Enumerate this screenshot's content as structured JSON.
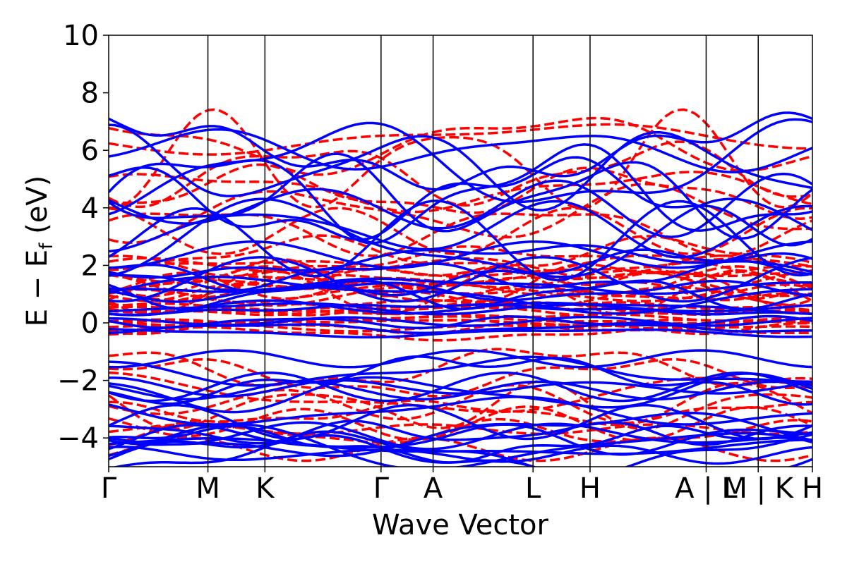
{
  "chart_data": {
    "type": "line",
    "title": "",
    "xlabel": "Wave Vector",
    "ylabel_main": "E − E",
    "ylabel_sub": "f",
    "ylabel_unit": " (eV)",
    "ylim": [
      -5,
      10
    ],
    "yticks": [
      {
        "value": -4,
        "label": "−4"
      },
      {
        "value": -2,
        "label": "−2"
      },
      {
        "value": 0,
        "label": "0"
      },
      {
        "value": 2,
        "label": "2"
      },
      {
        "value": 4,
        "label": "4"
      },
      {
        "value": 6,
        "label": "6"
      },
      {
        "value": 8,
        "label": "8"
      },
      {
        "value": 10,
        "label": "10"
      }
    ],
    "xlim": [
      0,
      1
    ],
    "kpoints": [
      {
        "pos": 0.0,
        "label": "Γ"
      },
      {
        "pos": 0.141,
        "label": "M"
      },
      {
        "pos": 0.222,
        "label": "K"
      },
      {
        "pos": 0.387,
        "label": "Γ"
      },
      {
        "pos": 0.461,
        "label": "A"
      },
      {
        "pos": 0.603,
        "label": "L"
      },
      {
        "pos": 0.684,
        "label": "H"
      },
      {
        "pos": 0.849,
        "label": "A | L"
      },
      {
        "pos": 0.923,
        "label": "M | K"
      },
      {
        "pos": 1.0,
        "label": "H"
      }
    ],
    "series": [
      {
        "name": "dashed",
        "style": "dashed",
        "color": "#ff0000"
      },
      {
        "name": "solid",
        "style": "solid",
        "color": "#0000ff"
      }
    ],
    "band_counts": {
      "dashed": 46,
      "solid": 46
    }
  }
}
